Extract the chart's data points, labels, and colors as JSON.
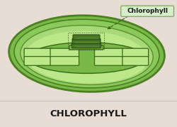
{
  "bg_color": "#e8ddd4",
  "bottom_bar_color": "#e8ddd4",
  "bottom_text": "CHLOROPHYLL",
  "bottom_text_color": "#1a1a1a",
  "label_text": "Chlorophyll",
  "label_box_color": "#d8edcc",
  "label_box_edge_color": "#7aaa55",
  "outer_fill": "#7ab84a",
  "outer_edge": "#4a8020",
  "outer2_fill": "#8aca5a",
  "outer2_edge": "#4a8020",
  "inner_fill": "#a8d878",
  "inner_edge": "#5a9030",
  "stroma_fill": "#bce88a",
  "thylakoid_fill": "#7ab848",
  "thylakoid_edge": "#3a6818",
  "granum_fill": "#4a7828",
  "granum_edge": "#2a4810",
  "membrane_fill": "#c8e898",
  "sep_line_color": "#c8beb4",
  "arrow_color": "#3a6818"
}
